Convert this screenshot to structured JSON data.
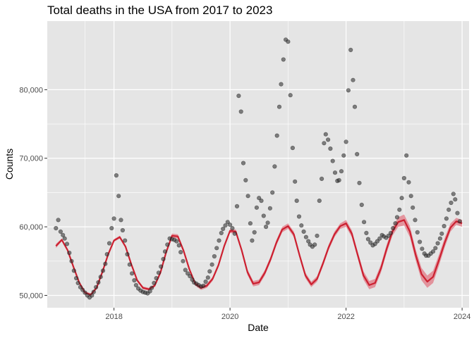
{
  "chart_data": {
    "type": "scatter",
    "title": "Total deaths in the USA from 2017 to 2023",
    "xlabel": "Date",
    "ylabel": "Counts",
    "xlim": [
      2016.85,
      2024.12
    ],
    "ylim": [
      48200,
      90000
    ],
    "x_ticks": [
      {
        "value": 2018,
        "label": "2018"
      },
      {
        "value": 2020,
        "label": "2020"
      },
      {
        "value": 2022,
        "label": "2022"
      },
      {
        "value": 2024,
        "label": "2024"
      }
    ],
    "y_ticks": [
      {
        "value": 50000,
        "label": "50,000"
      },
      {
        "value": 60000,
        "label": "60,000"
      },
      {
        "value": 70000,
        "label": "70,000"
      },
      {
        "value": 80000,
        "label": "80,000"
      }
    ],
    "grid": true,
    "panel_background": "#e5e5e5",
    "point_color": "#333333",
    "fit_color": "#cc2030",
    "band_color": "#e05060",
    "series": [
      {
        "type": "points",
        "x": [
          2017.0,
          2017.04,
          2017.08,
          2017.12,
          2017.15,
          2017.19,
          2017.23,
          2017.27,
          2017.31,
          2017.35,
          2017.38,
          2017.42,
          2017.46,
          2017.5,
          2017.54,
          2017.58,
          2017.62,
          2017.65,
          2017.69,
          2017.73,
          2017.77,
          2017.81,
          2017.85,
          2017.88,
          2017.92,
          2017.96,
          2018.0,
          2018.04,
          2018.08,
          2018.12,
          2018.15,
          2018.19,
          2018.23,
          2018.27,
          2018.31,
          2018.35,
          2018.38,
          2018.42,
          2018.46,
          2018.5,
          2018.54,
          2018.58,
          2018.62,
          2018.65,
          2018.69,
          2018.73,
          2018.77,
          2018.81,
          2018.85,
          2018.88,
          2018.92,
          2018.96,
          2019.0,
          2019.04,
          2019.08,
          2019.12,
          2019.15,
          2019.19,
          2019.23,
          2019.27,
          2019.31,
          2019.35,
          2019.38,
          2019.42,
          2019.46,
          2019.5,
          2019.54,
          2019.58,
          2019.62,
          2019.65,
          2019.69,
          2019.73,
          2019.77,
          2019.81,
          2019.85,
          2019.88,
          2019.92,
          2019.96,
          2020.0,
          2020.04,
          2020.08,
          2020.12,
          2020.15,
          2020.19,
          2020.23,
          2020.27,
          2020.31,
          2020.35,
          2020.38,
          2020.42,
          2020.46,
          2020.5,
          2020.54,
          2020.58,
          2020.62,
          2020.65,
          2020.69,
          2020.73,
          2020.77,
          2020.81,
          2020.85,
          2020.88,
          2020.92,
          2020.96,
          2021.0,
          2021.04,
          2021.08,
          2021.12,
          2021.15,
          2021.19,
          2021.23,
          2021.27,
          2021.31,
          2021.35,
          2021.38,
          2021.42,
          2021.46,
          2021.5,
          2021.54,
          2021.58,
          2021.62,
          2021.65,
          2021.69,
          2021.73,
          2021.77,
          2021.81,
          2021.85,
          2021.88,
          2021.92,
          2021.96,
          2022.0,
          2022.04,
          2022.08,
          2022.12,
          2022.15,
          2022.19,
          2022.23,
          2022.27,
          2022.31,
          2022.35,
          2022.38,
          2022.42,
          2022.46,
          2022.5,
          2022.54,
          2022.58,
          2022.62,
          2022.65,
          2022.69,
          2022.73,
          2022.77,
          2022.81,
          2022.85,
          2022.88,
          2022.92,
          2022.96,
          2023.0,
          2023.04,
          2023.08,
          2023.12,
          2023.15,
          2023.19,
          2023.23,
          2023.27,
          2023.31,
          2023.35,
          2023.38,
          2023.42,
          2023.46,
          2023.5,
          2023.54,
          2023.58,
          2023.62,
          2023.65,
          2023.69,
          2023.73,
          2023.77,
          2023.81,
          2023.85,
          2023.88,
          2023.92,
          2023.96
        ],
        "y": [
          59800,
          61000,
          59300,
          58800,
          58300,
          57500,
          56200,
          55000,
          53600,
          52500,
          51800,
          51200,
          50800,
          50400,
          50000,
          49700,
          50000,
          50500,
          51200,
          51900,
          52700,
          53600,
          54600,
          56000,
          57600,
          59800,
          61200,
          67500,
          64500,
          61000,
          59500,
          58000,
          56000,
          54500,
          53200,
          52200,
          51500,
          51000,
          50700,
          50500,
          50400,
          50300,
          50600,
          51100,
          51800,
          52500,
          53300,
          54200,
          55300,
          56400,
          57400,
          58300,
          58200,
          58100,
          57900,
          57300,
          56300,
          55000,
          53700,
          53200,
          52800,
          52300,
          51900,
          51700,
          51500,
          51300,
          51400,
          52000,
          52600,
          53500,
          54500,
          55700,
          56900,
          58000,
          59100,
          59700,
          60200,
          60700,
          60300,
          59800,
          59000,
          63000,
          79100,
          76800,
          69300,
          66800,
          64500,
          60500,
          58000,
          59200,
          62800,
          64200,
          63800,
          61600,
          60000,
          60600,
          62700,
          65000,
          68800,
          73300,
          77500,
          80800,
          84400,
          87300,
          87000,
          79200,
          71500,
          66600,
          63800,
          61500,
          60200,
          59300,
          58500,
          57900,
          57400,
          57100,
          57400,
          58700,
          63800,
          67000,
          72200,
          73500,
          72700,
          71400,
          69600,
          67900,
          66700,
          66800,
          68100,
          70400,
          72400,
          79900,
          85800,
          81400,
          77500,
          70600,
          66400,
          63200,
          60700,
          59100,
          58200,
          57700,
          57300,
          57500,
          57900,
          58300,
          58800,
          58600,
          58400,
          58700,
          59100,
          59800,
          60500,
          61400,
          62500,
          64200,
          67100,
          70400,
          66500,
          64500,
          62800,
          61000,
          59200,
          57800,
          56800,
          56100,
          55800,
          55800,
          56100,
          56400,
          56900,
          57600,
          58300,
          59000,
          60100,
          61200,
          62500,
          63500,
          64800,
          64000,
          62000,
          60800
        ]
      },
      {
        "type": "fit",
        "x": [
          2017.0,
          2017.1,
          2017.2,
          2017.3,
          2017.4,
          2017.5,
          2017.6,
          2017.7,
          2017.8,
          2017.9,
          2018.0,
          2018.1,
          2018.2,
          2018.3,
          2018.4,
          2018.5,
          2018.6,
          2018.7,
          2018.8,
          2018.9,
          2019.0,
          2019.1,
          2019.2,
          2019.3,
          2019.4,
          2019.5,
          2019.6,
          2019.7,
          2019.8,
          2019.9,
          2020.0,
          2020.1,
          2020.2,
          2020.3,
          2020.4,
          2020.5,
          2020.6,
          2020.7,
          2020.8,
          2020.9,
          2021.0,
          2021.1,
          2021.2,
          2021.3,
          2021.4,
          2021.5,
          2021.6,
          2021.7,
          2021.8,
          2021.9,
          2022.0,
          2022.1,
          2022.2,
          2022.3,
          2022.4,
          2022.5,
          2022.6,
          2022.7,
          2022.8,
          2022.9,
          2023.0,
          2023.1,
          2023.2,
          2023.3,
          2023.4,
          2023.5,
          2023.6,
          2023.7,
          2023.8,
          2023.9,
          2024.0
        ],
        "y": [
          57200,
          58100,
          56600,
          54200,
          51900,
          50400,
          50100,
          51100,
          53400,
          56000,
          58000,
          58500,
          57100,
          54500,
          52200,
          51100,
          50900,
          51400,
          53300,
          56300,
          58700,
          58600,
          56500,
          53800,
          51700,
          51100,
          51400,
          52400,
          54400,
          57200,
          59400,
          59300,
          56600,
          53400,
          51700,
          51900,
          53300,
          55300,
          57700,
          59600,
          60100,
          58900,
          55800,
          52900,
          51600,
          52400,
          54600,
          57000,
          58900,
          60100,
          60500,
          59000,
          55900,
          52900,
          51500,
          51800,
          53900,
          56800,
          59300,
          60700,
          61000,
          59300,
          55900,
          53100,
          52000,
          52700,
          55100,
          57700,
          59900,
          60800,
          60500
        ],
        "band_halfwidth": [
          300,
          200,
          200,
          200,
          200,
          200,
          200,
          200,
          200,
          200,
          200,
          200,
          200,
          200,
          200,
          200,
          200,
          200,
          200,
          200,
          300,
          300,
          300,
          300,
          300,
          300,
          300,
          300,
          300,
          300,
          300,
          300,
          300,
          400,
          400,
          400,
          400,
          400,
          400,
          400,
          400,
          400,
          400,
          400,
          400,
          400,
          400,
          400,
          400,
          400,
          500,
          500,
          500,
          600,
          600,
          600,
          600,
          600,
          600,
          700,
          800,
          800,
          800,
          900,
          900,
          900,
          800,
          700,
          600,
          500,
          500
        ]
      }
    ]
  }
}
